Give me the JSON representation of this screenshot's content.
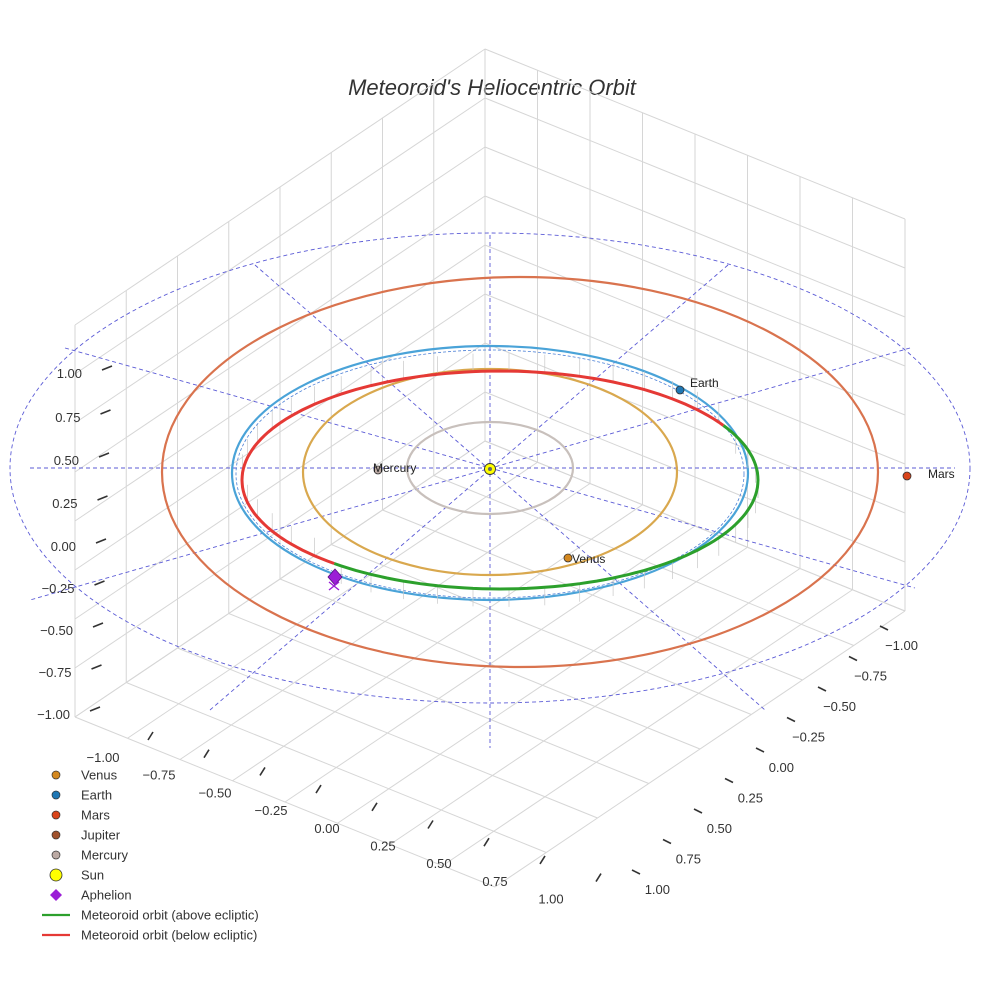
{
  "chart_data": {
    "type": "scatter3d",
    "title": "Meteoroid's Heliocentric Orbit",
    "axes": {
      "x": {
        "range": [
          -1.0,
          1.0
        ],
        "ticks": [
          "−1.00",
          "−0.75",
          "−0.50",
          "−0.25",
          "0.00",
          "0.25",
          "0.50",
          "0.75",
          "1.00"
        ]
      },
      "y": {
        "range": [
          -1.0,
          1.0
        ],
        "ticks": [
          "−1.00",
          "−0.75",
          "−0.50",
          "−0.25",
          "0.00",
          "0.25",
          "0.50",
          "0.75",
          "1.00"
        ]
      },
      "z": {
        "range": [
          -1.0,
          1.0
        ],
        "ticks": [
          "−1.00",
          "−0.75",
          "−0.50",
          "−0.25",
          "0.00",
          "0.25",
          "0.50",
          "0.75",
          "1.00"
        ]
      },
      "grid": true
    },
    "planets": [
      {
        "name": "Mercury",
        "label": "Mercury",
        "orbit_radius_au": 0.39,
        "color": "#bcaaa4",
        "orbit_color": "#c8c0bc"
      },
      {
        "name": "Venus",
        "label": "Venus",
        "orbit_radius_au": 0.72,
        "color": "#d4881f",
        "orbit_color": "#d9a84e"
      },
      {
        "name": "Earth",
        "label": "Earth",
        "orbit_radius_au": 1.0,
        "color": "#1f77b4",
        "orbit_color": "#4aa3d8"
      },
      {
        "name": "Mars",
        "label": "Mars",
        "orbit_radius_au": 1.52,
        "color": "#d9441a",
        "orbit_color": "#d9734e"
      }
    ],
    "sun": {
      "name": "Sun",
      "color": "#ffff00"
    },
    "aphelion": {
      "name": "Aphelion",
      "color": "#9b1fd6"
    },
    "meteoroid_orbit": {
      "above_color": "#2ca02c",
      "below_color": "#e53935"
    },
    "legend": {
      "placement": "bottom-left",
      "items": [
        {
          "label": "Venus",
          "symbol": "dot",
          "color": "#d4881f"
        },
        {
          "label": "Earth",
          "symbol": "dot",
          "color": "#1f77b4"
        },
        {
          "label": "Mars",
          "symbol": "dot",
          "color": "#d9441a"
        },
        {
          "label": "Jupiter",
          "symbol": "dot",
          "color": "#a0522d"
        },
        {
          "label": "Mercury",
          "symbol": "dot",
          "color": "#bcaaa4"
        },
        {
          "label": "Sun",
          "symbol": "bigdot",
          "color": "#ffff00"
        },
        {
          "label": "Aphelion",
          "symbol": "diamond",
          "color": "#9b1fd6"
        },
        {
          "label": "Meteoroid orbit (above ecliptic)",
          "symbol": "line",
          "color": "#2ca02c"
        },
        {
          "label": "Meteoroid orbit (below ecliptic)",
          "symbol": "line",
          "color": "#e53935"
        }
      ]
    }
  }
}
